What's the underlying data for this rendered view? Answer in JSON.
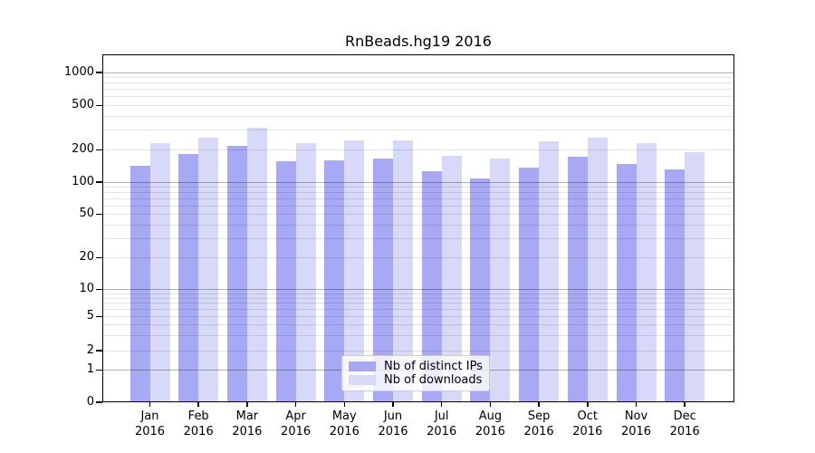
{
  "title": "RnBeads.hg19 2016",
  "colors": {
    "distinct_ips_bar": "#a8a8f4",
    "downloads_bar": "#d8d8f8",
    "grid_major": "rgba(0,0,0,0.30)",
    "grid_minor": "rgba(0,0,0,0.11)",
    "frame": "#000000",
    "legend_border": "#cccccc"
  },
  "legend": {
    "items": [
      {
        "label": "Nb of distinct IPs",
        "series": "distinct_ips"
      },
      {
        "label": "Nb of downloads",
        "series": "downloads"
      }
    ],
    "position": "lower center"
  },
  "chart_data": {
    "type": "bar",
    "title": "RnBeads.hg19 2016",
    "categories": [
      "Jan 2016",
      "Feb 2016",
      "Mar 2016",
      "Apr 2016",
      "May 2016",
      "Jun 2016",
      "Jul 2016",
      "Aug 2016",
      "Sep 2016",
      "Oct 2016",
      "Nov 2016",
      "Dec 2016"
    ],
    "x_tick_months": [
      "Jan",
      "Feb",
      "Mar",
      "Apr",
      "May",
      "Jun",
      "Jul",
      "Aug",
      "Sep",
      "Oct",
      "Nov",
      "Dec"
    ],
    "x_tick_year": "2016",
    "series": [
      {
        "name": "Nb of distinct IPs",
        "values": [
          140,
          180,
          215,
          156,
          157,
          166,
          124,
          108,
          136,
          172,
          147,
          131
        ]
      },
      {
        "name": "Nb of downloads",
        "values": [
          228,
          255,
          315,
          230,
          240,
          240,
          175,
          166,
          235,
          255,
          230,
          188
        ]
      }
    ],
    "xlabel": "",
    "ylabel": "",
    "y_axis": {
      "scale": "log-like (0,1,2,5,10,20,50,100,200,500,1000)",
      "tick_labels": [
        "0",
        "1",
        "2",
        "5",
        "10",
        "20",
        "50",
        "100",
        "200",
        "500",
        "1000"
      ],
      "tick_values": [
        0,
        1,
        2,
        5,
        10,
        20,
        50,
        100,
        200,
        500,
        1000
      ],
      "minor_grid_values": [
        2,
        3,
        4,
        5,
        6,
        7,
        8,
        9,
        20,
        30,
        40,
        50,
        60,
        70,
        80,
        90,
        200,
        300,
        400,
        500,
        600,
        700,
        800,
        900
      ],
      "major_grid_values": [
        1,
        10,
        100,
        1000
      ],
      "ylim": [
        0,
        1400
      ]
    },
    "grid": "both",
    "legend_position": "lower center"
  }
}
